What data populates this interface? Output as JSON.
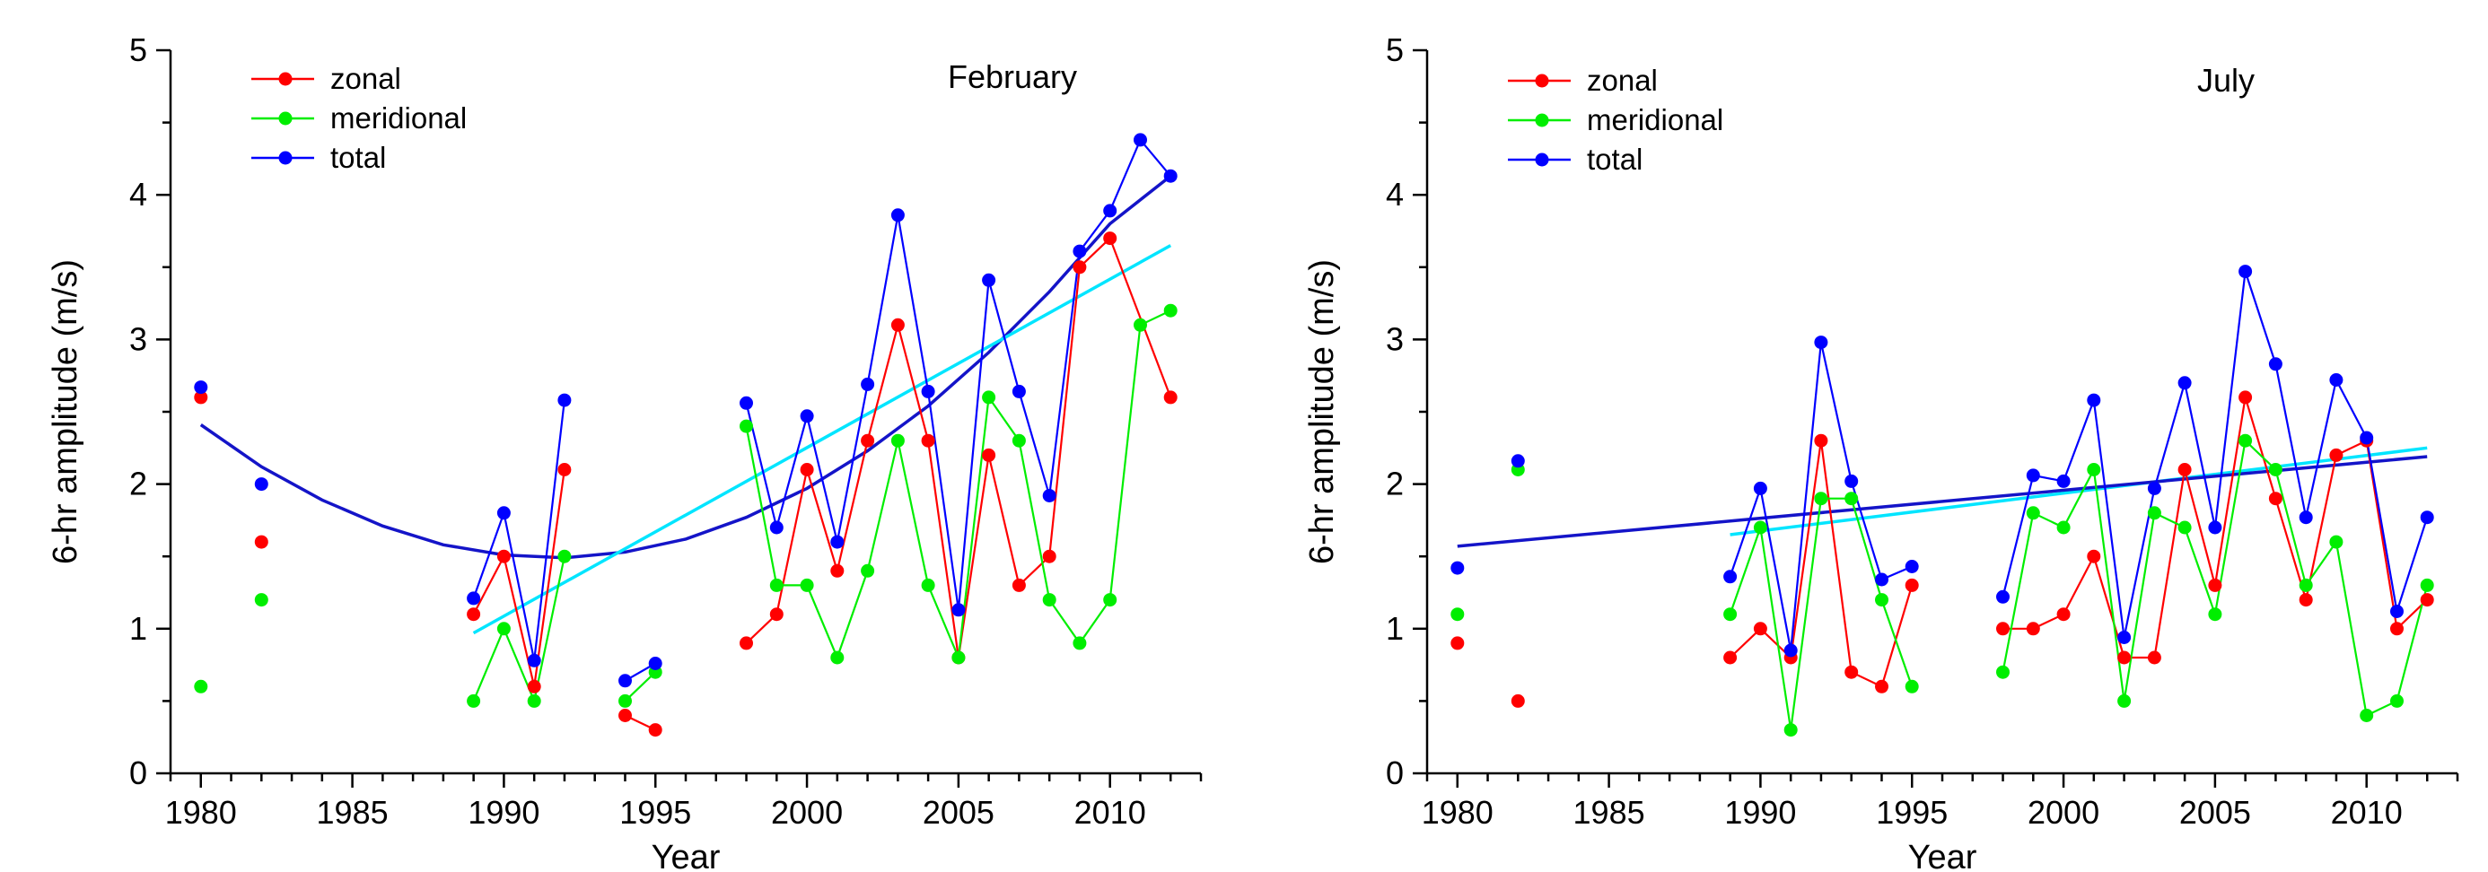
{
  "chart_data": [
    {
      "type": "line",
      "title": "February",
      "xlabel": "Year",
      "ylabel": "6-hr amplitude (m/s)",
      "xlim": [
        1979,
        2013
      ],
      "ylim": [
        0,
        5
      ],
      "xticks": [
        "1980",
        "1985",
        "1990",
        "1995",
        "2000",
        "2005",
        "2010"
      ],
      "yticks": [
        "0",
        "1",
        "2",
        "3",
        "4",
        "5"
      ],
      "legend_position": "top-left",
      "grid": false,
      "series": [
        {
          "name": "zonal",
          "color": "#ff0000",
          "x": [
            1980,
            1982,
            1989,
            1990,
            1991,
            1992,
            1994,
            1995,
            1998,
            1999,
            2000,
            2001,
            2002,
            2003,
            2004,
            2005,
            2006,
            2007,
            2008,
            2009,
            2010,
            2012
          ],
          "y": [
            2.6,
            1.6,
            1.1,
            1.5,
            0.6,
            2.1,
            0.4,
            0.3,
            0.9,
            1.1,
            2.1,
            1.4,
            2.3,
            3.1,
            2.3,
            0.8,
            2.2,
            1.3,
            1.5,
            3.5,
            3.7,
            2.6
          ],
          "segments": [
            [
              2,
              5
            ],
            [
              6,
              7
            ],
            [
              8,
              20
            ],
            [
              20,
              21
            ]
          ]
        },
        {
          "name": "meridional",
          "color": "#00ee00",
          "x": [
            1980,
            1982,
            1989,
            1990,
            1991,
            1992,
            1994,
            1995,
            1998,
            1999,
            2000,
            2001,
            2002,
            2003,
            2004,
            2005,
            2006,
            2007,
            2008,
            2009,
            2010,
            2011,
            2012
          ],
          "y": [
            0.6,
            1.2,
            0.5,
            1.0,
            0.5,
            1.5,
            0.5,
            0.7,
            2.4,
            1.3,
            1.3,
            0.8,
            1.4,
            2.3,
            1.3,
            0.8,
            2.6,
            2.3,
            1.2,
            0.9,
            1.2,
            3.1,
            3.2
          ],
          "segments": [
            [
              2,
              5
            ],
            [
              6,
              7
            ],
            [
              8,
              22
            ]
          ]
        },
        {
          "name": "total",
          "color": "#0000ff",
          "x": [
            1980,
            1982,
            1989,
            1990,
            1991,
            1992,
            1994,
            1995,
            1998,
            1999,
            2000,
            2001,
            2002,
            2003,
            2004,
            2005,
            2006,
            2007,
            2008,
            2009,
            2010,
            2011,
            2012
          ],
          "y": [
            2.67,
            2.0,
            1.21,
            1.8,
            0.78,
            2.58,
            0.64,
            0.76,
            2.56,
            1.7,
            2.47,
            1.6,
            2.69,
            3.86,
            2.64,
            1.13,
            3.41,
            2.64,
            1.92,
            3.61,
            3.89,
            4.38,
            4.13
          ],
          "segments": [
            [
              2,
              5
            ],
            [
              6,
              7
            ],
            [
              8,
              22
            ]
          ]
        }
      ],
      "fits": [
        {
          "kind": "quadratic",
          "color": "#1414c8",
          "x": [
            1980,
            1982,
            1984,
            1986,
            1988,
            1990,
            1992,
            1994,
            1996,
            1998,
            2000,
            2002,
            2004,
            2006,
            2008,
            2010,
            2012
          ],
          "y": [
            2.41,
            2.12,
            1.89,
            1.71,
            1.58,
            1.51,
            1.49,
            1.53,
            1.62,
            1.77,
            1.97,
            2.23,
            2.54,
            2.91,
            3.33,
            3.8,
            4.13
          ]
        },
        {
          "kind": "linear",
          "color": "#00e5ff",
          "x": [
            1989,
            2012
          ],
          "y": [
            0.97,
            3.65
          ]
        }
      ]
    },
    {
      "type": "line",
      "title": "July",
      "xlabel": "Year",
      "ylabel": "6-hr amplitude (m/s)",
      "xlim": [
        1979,
        2013
      ],
      "ylim": [
        0,
        5
      ],
      "xticks": [
        "1980",
        "1985",
        "1990",
        "1995",
        "2000",
        "2005",
        "2010"
      ],
      "yticks": [
        "0",
        "1",
        "2",
        "3",
        "4",
        "5"
      ],
      "legend_position": "top-left",
      "grid": false,
      "series": [
        {
          "name": "zonal",
          "color": "#ff0000",
          "x": [
            1980,
            1982,
            1989,
            1990,
            1991,
            1992,
            1993,
            1994,
            1995,
            1998,
            1999,
            2000,
            2001,
            2002,
            2003,
            2004,
            2005,
            2006,
            2007,
            2008,
            2009,
            2010,
            2011,
            2012
          ],
          "y": [
            0.9,
            0.5,
            0.8,
            1.0,
            0.8,
            2.3,
            0.7,
            0.6,
            1.3,
            1.0,
            1.0,
            1.1,
            1.5,
            0.8,
            0.8,
            2.1,
            1.3,
            2.6,
            1.9,
            1.2,
            2.2,
            2.3,
            1.0,
            1.2
          ],
          "segments": [
            [
              2,
              8
            ],
            [
              9,
              23
            ]
          ]
        },
        {
          "name": "meridional",
          "color": "#00ee00",
          "x": [
            1980,
            1982,
            1989,
            1990,
            1991,
            1992,
            1993,
            1994,
            1995,
            1998,
            1999,
            2000,
            2001,
            2002,
            2003,
            2004,
            2005,
            2006,
            2007,
            2008,
            2009,
            2010,
            2011,
            2012
          ],
          "y": [
            1.1,
            2.1,
            1.1,
            1.7,
            0.3,
            1.9,
            1.9,
            1.2,
            0.6,
            0.7,
            1.8,
            1.7,
            2.1,
            0.5,
            1.8,
            1.7,
            1.1,
            2.3,
            2.1,
            1.3,
            1.6,
            0.4,
            0.5,
            1.3
          ],
          "segments": [
            [
              2,
              8
            ],
            [
              9,
              23
            ]
          ]
        },
        {
          "name": "total",
          "color": "#0000ff",
          "x": [
            1980,
            1982,
            1989,
            1990,
            1991,
            1992,
            1993,
            1994,
            1995,
            1998,
            1999,
            2000,
            2001,
            2002,
            2003,
            2004,
            2005,
            2006,
            2007,
            2008,
            2009,
            2010,
            2011,
            2012
          ],
          "y": [
            1.42,
            2.16,
            1.36,
            1.97,
            0.85,
            2.98,
            2.02,
            1.34,
            1.43,
            1.22,
            2.06,
            2.02,
            2.58,
            0.94,
            1.97,
            2.7,
            1.7,
            3.47,
            2.83,
            1.77,
            2.72,
            2.32,
            1.12,
            1.77
          ],
          "segments": [
            [
              2,
              8
            ],
            [
              9,
              23
            ]
          ]
        }
      ],
      "fits": [
        {
          "kind": "linear",
          "color": "#00e5ff",
          "x": [
            1989,
            2012
          ],
          "y": [
            1.65,
            2.25
          ]
        },
        {
          "kind": "linear",
          "color": "#1414c8",
          "x": [
            1980,
            2012
          ],
          "y": [
            1.57,
            2.19
          ]
        }
      ]
    }
  ]
}
